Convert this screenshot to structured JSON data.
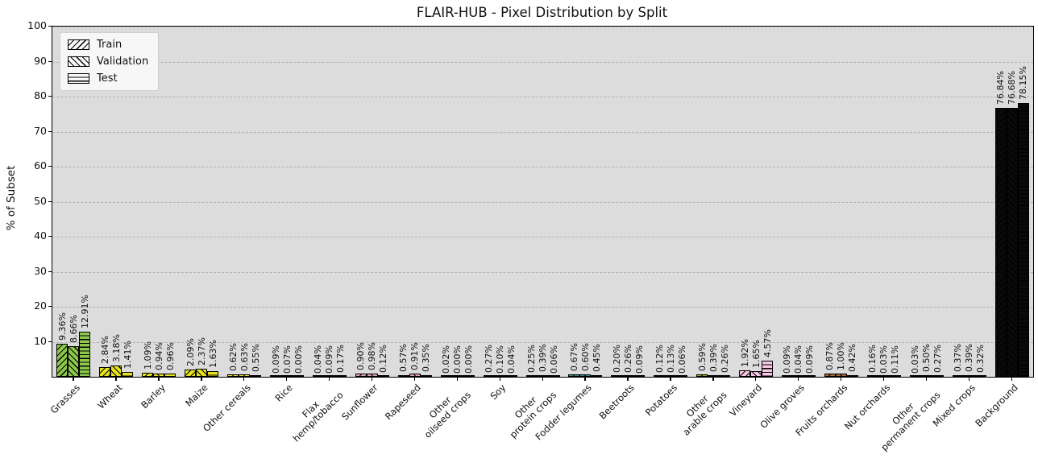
{
  "chart_data": {
    "type": "bar",
    "title": "FLAIR-HUB - Pixel Distribution by Split",
    "xlabel": "",
    "ylabel": "% of Subset",
    "ylim": [
      0,
      100
    ],
    "yticks": [
      10,
      20,
      30,
      40,
      50,
      60,
      70,
      80,
      90,
      100
    ],
    "grid": "horizontal dashed",
    "plot_background": "#DCDCDC",
    "legend": {
      "position": "upper left",
      "entries": [
        {
          "label": "Train",
          "hatch": "//"
        },
        {
          "label": "Validation",
          "hatch": "\\\\"
        },
        {
          "label": "Test",
          "hatch": "--"
        }
      ]
    },
    "categories": [
      "Grasses",
      "Wheat",
      "Barley",
      "Maize",
      "Other cereals",
      "Rice",
      "Flax\nhemp/tobacco",
      "Sunflower",
      "Rapeseed",
      "Other\noilseed crops",
      "Soy",
      "Other\nprotein crops",
      "Fodder legumes",
      "Beetroots",
      "Potatoes",
      "Other\narable crops",
      "Vineyard",
      "Olive groves",
      "Fruits orchards",
      "Nut orchards",
      "Other\npermanent crops",
      "Mixed crops",
      "Background"
    ],
    "category_colors": [
      "#8CC84B",
      "#E6E21C",
      "#E6E21C",
      "#E6E21C",
      "#E6E21C",
      "#E6E21C",
      "#9E9E9E",
      "#DDA0B5",
      "#DDA0B5",
      "#DDA0B5",
      "#E6E21C",
      "#E5A13D",
      "#2E8B8B",
      "#4A4A4A",
      "#4A4A4A",
      "#ABA410",
      "#F3C5E0",
      "#808000",
      "#A9682F",
      "#8B5A2B",
      "#ADD8E6",
      "#3A3A3A",
      "#0A0A0A"
    ],
    "series": [
      {
        "name": "Train",
        "values": [
          9.36,
          2.84,
          1.09,
          2.09,
          0.62,
          0.09,
          0.04,
          0.9,
          0.57,
          0.02,
          0.27,
          0.25,
          0.67,
          0.2,
          0.12,
          0.59,
          1.92,
          0.09,
          0.87,
          0.16,
          0.03,
          0.37,
          76.84
        ]
      },
      {
        "name": "Validation",
        "values": [
          8.66,
          3.18,
          0.94,
          2.37,
          0.63,
          0.07,
          0.09,
          0.98,
          0.91,
          0.0,
          0.1,
          0.39,
          0.6,
          0.26,
          0.13,
          0.39,
          1.65,
          0.04,
          1.0,
          0.03,
          0.5,
          0.39,
          76.68
        ]
      },
      {
        "name": "Test",
        "values": [
          12.91,
          1.41,
          0.96,
          1.63,
          0.55,
          0.0,
          0.17,
          0.12,
          0.35,
          0.0,
          0.04,
          0.06,
          0.45,
          0.09,
          0.06,
          0.26,
          4.57,
          0.09,
          0.42,
          0.11,
          0.27,
          0.32,
          78.15
        ]
      }
    ],
    "value_label_format": "0.00%"
  }
}
